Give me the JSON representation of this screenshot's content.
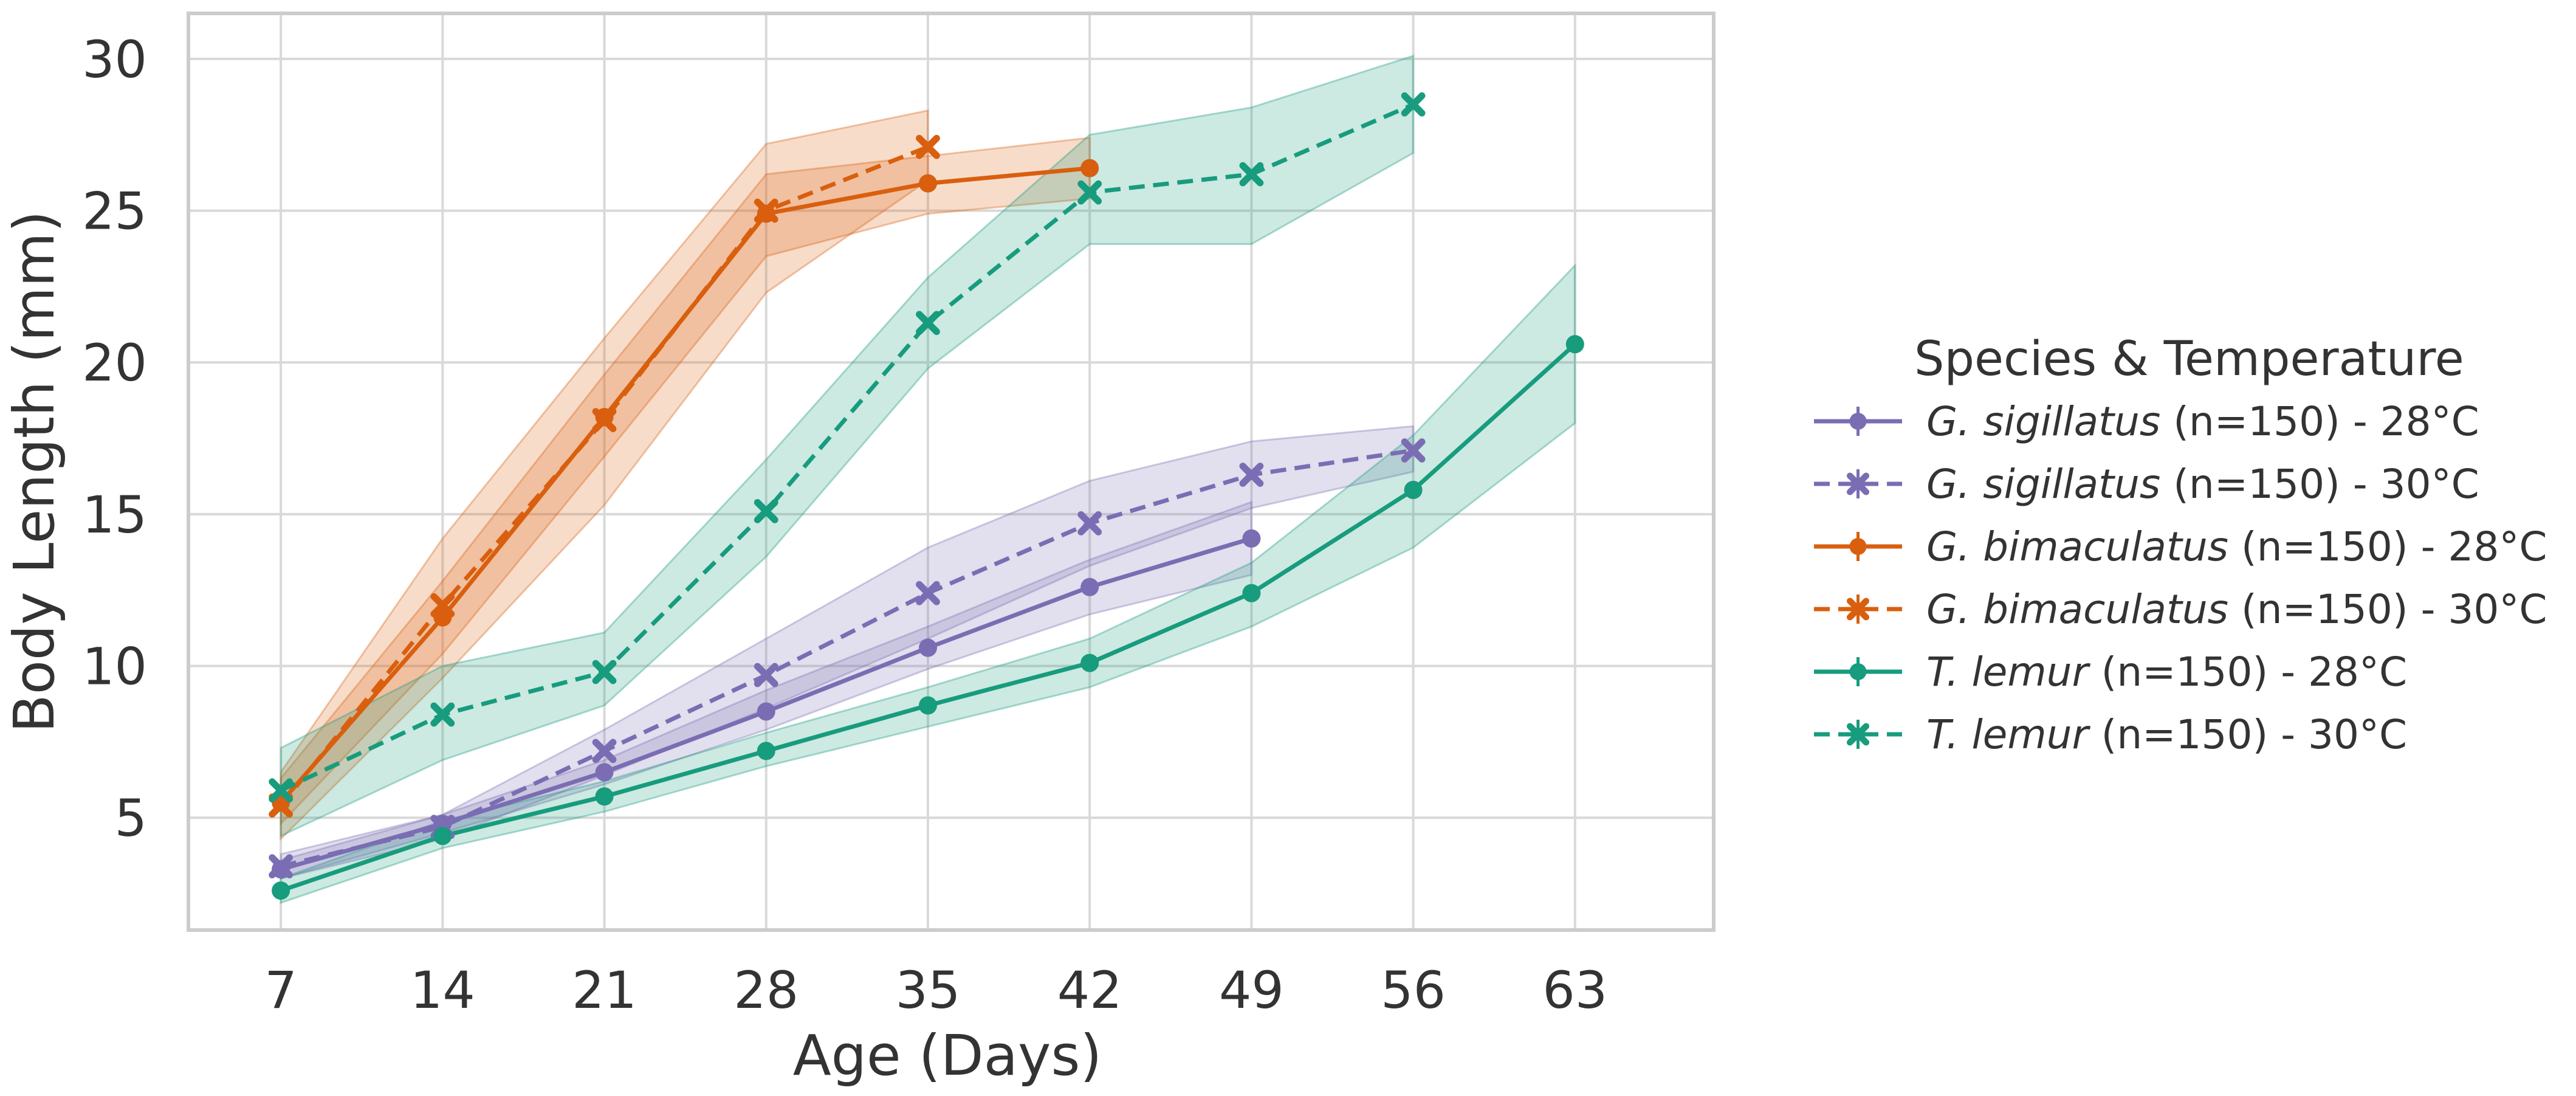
{
  "chart_data": {
    "type": "line",
    "xlabel": "Age (Days)",
    "ylabel": "Body Length (mm)",
    "xlim": [
      3,
      69
    ],
    "ylim": [
      1.3,
      31.5
    ],
    "x_ticks": [
      7,
      14,
      21,
      28,
      35,
      42,
      49,
      56,
      63
    ],
    "y_ticks": [
      5,
      10,
      15,
      20,
      25,
      30
    ],
    "grid": true,
    "legend": {
      "title": "Species & Temperature",
      "placement": "right, outside plot"
    },
    "colors": {
      "gsig": "#7b6db3",
      "gbim": "#d95f0e",
      "tlem": "#179c7d",
      "grid": "#d9d9d9",
      "frame": "#cccccc"
    },
    "series": [
      {
        "species": "G. sigillatus",
        "suffix": "(n=150) - 28°C",
        "color_key": "gsig",
        "dashed": false,
        "marker": "circle",
        "x": [
          7,
          14,
          21,
          28,
          35,
          42,
          49
        ],
        "values": [
          3.3,
          4.8,
          6.5,
          8.5,
          10.6,
          12.6,
          14.2
        ],
        "lower": [
          3.0,
          4.5,
          6.1,
          7.9,
          9.9,
          11.7,
          13.0
        ],
        "upper": [
          3.6,
          5.1,
          6.9,
          9.2,
          11.3,
          13.5,
          15.4
        ]
      },
      {
        "species": "G. sigillatus",
        "suffix": "(n=150) - 30°C",
        "color_key": "gsig",
        "dashed": true,
        "marker": "x",
        "x": [
          7,
          14,
          21,
          28,
          35,
          42,
          49,
          56
        ],
        "values": [
          3.4,
          4.7,
          7.2,
          9.7,
          12.4,
          14.7,
          16.3,
          17.1
        ],
        "lower": [
          3.0,
          4.3,
          6.4,
          8.6,
          10.9,
          13.3,
          15.2,
          16.4
        ],
        "upper": [
          3.8,
          5.1,
          7.9,
          10.9,
          13.9,
          16.1,
          17.4,
          17.9
        ]
      },
      {
        "species": "G. bimaculatus",
        "suffix": "(n=150) - 28°C",
        "color_key": "gbim",
        "dashed": false,
        "marker": "circle",
        "x": [
          7,
          14,
          21,
          28,
          35,
          42
        ],
        "values": [
          5.5,
          11.6,
          18.2,
          24.9,
          25.9,
          26.4
        ],
        "lower": [
          4.8,
          10.4,
          16.9,
          23.5,
          24.9,
          25.4
        ],
        "upper": [
          6.3,
          12.8,
          19.6,
          26.2,
          26.8,
          27.4
        ]
      },
      {
        "species": "G. bimaculatus",
        "suffix": "(n=150) - 30°C",
        "color_key": "gbim",
        "dashed": true,
        "marker": "x",
        "x": [
          7,
          14,
          21,
          28,
          35
        ],
        "values": [
          5.4,
          12.0,
          18.1,
          25.0,
          27.1
        ],
        "lower": [
          4.3,
          9.6,
          15.3,
          22.3,
          26.0
        ],
        "upper": [
          6.5,
          14.2,
          20.8,
          27.2,
          28.3
        ]
      },
      {
        "species": "T. lemur",
        "suffix": "(n=150) - 28°C",
        "color_key": "tlem",
        "dashed": false,
        "marker": "circle",
        "x": [
          7,
          14,
          21,
          28,
          35,
          42,
          49,
          56,
          63
        ],
        "values": [
          2.6,
          4.4,
          5.7,
          7.2,
          8.7,
          10.1,
          12.4,
          15.8,
          20.6
        ],
        "lower": [
          2.2,
          4.0,
          5.2,
          6.7,
          8.0,
          9.3,
          11.3,
          13.9,
          18.0
        ],
        "upper": [
          3.0,
          4.9,
          6.2,
          7.8,
          9.3,
          10.9,
          13.4,
          17.6,
          23.2
        ]
      },
      {
        "species": "T. lemur",
        "suffix": "(n=150) - 30°C",
        "color_key": "tlem",
        "dashed": true,
        "marker": "x",
        "x": [
          7,
          14,
          21,
          28,
          35,
          42,
          49,
          56
        ],
        "values": [
          5.9,
          8.4,
          9.8,
          15.1,
          21.3,
          25.6,
          26.2,
          28.5
        ],
        "lower": [
          4.4,
          6.9,
          8.7,
          13.6,
          19.8,
          23.9,
          23.9,
          26.9
        ],
        "upper": [
          7.3,
          10.0,
          11.1,
          16.8,
          22.8,
          27.5,
          28.4,
          30.1
        ]
      }
    ]
  }
}
